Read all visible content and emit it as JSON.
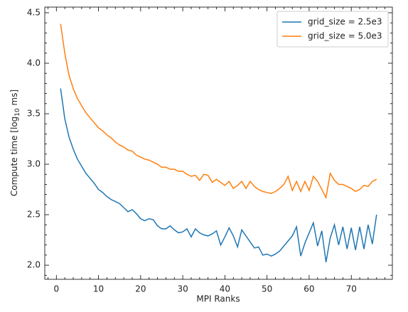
{
  "chart_data": {
    "type": "line",
    "xlabel": "MPI Ranks",
    "ylabel": [
      "Compute time [log",
      "10",
      " ms]"
    ],
    "x": [
      1,
      2,
      3,
      4,
      5,
      6,
      7,
      8,
      9,
      10,
      11,
      12,
      13,
      14,
      15,
      16,
      17,
      18,
      19,
      20,
      21,
      22,
      23,
      24,
      25,
      26,
      27,
      28,
      29,
      30,
      31,
      32,
      33,
      34,
      35,
      36,
      37,
      38,
      39,
      40,
      41,
      42,
      43,
      44,
      45,
      46,
      47,
      48,
      49,
      50,
      51,
      52,
      53,
      54,
      55,
      56,
      57,
      58,
      59,
      60,
      61,
      62,
      63,
      64,
      65,
      66,
      67,
      68,
      69,
      70,
      71,
      72,
      73,
      74,
      75,
      76
    ],
    "series": [
      {
        "name": "grid_size = 2.5e3",
        "color": "#1f77b4",
        "values": [
          3.75,
          3.45,
          3.27,
          3.15,
          3.05,
          2.98,
          2.91,
          2.86,
          2.81,
          2.75,
          2.72,
          2.68,
          2.65,
          2.63,
          2.61,
          2.57,
          2.53,
          2.55,
          2.51,
          2.46,
          2.44,
          2.46,
          2.45,
          2.39,
          2.36,
          2.36,
          2.39,
          2.35,
          2.32,
          2.33,
          2.36,
          2.28,
          2.36,
          2.32,
          2.3,
          2.29,
          2.31,
          2.34,
          2.2,
          2.28,
          2.37,
          2.29,
          2.18,
          2.35,
          2.29,
          2.23,
          2.17,
          2.18,
          2.1,
          2.11,
          2.09,
          2.11,
          2.14,
          2.19,
          2.24,
          2.29,
          2.38,
          2.09,
          2.22,
          2.32,
          2.42,
          2.19,
          2.34,
          2.03,
          2.27,
          2.4,
          2.2,
          2.38,
          2.16,
          2.37,
          2.15,
          2.38,
          2.16,
          2.4,
          2.21,
          2.5
        ]
      },
      {
        "name": "grid_size = 5.0e3",
        "color": "#ff7f0e",
        "values": [
          4.39,
          4.1,
          3.88,
          3.75,
          3.65,
          3.58,
          3.51,
          3.46,
          3.41,
          3.36,
          3.33,
          3.29,
          3.26,
          3.22,
          3.19,
          3.17,
          3.14,
          3.13,
          3.09,
          3.07,
          3.05,
          3.04,
          3.02,
          3.0,
          2.97,
          2.97,
          2.95,
          2.95,
          2.93,
          2.93,
          2.9,
          2.88,
          2.89,
          2.84,
          2.9,
          2.89,
          2.82,
          2.85,
          2.82,
          2.79,
          2.83,
          2.76,
          2.79,
          2.83,
          2.76,
          2.83,
          2.78,
          2.75,
          2.73,
          2.72,
          2.71,
          2.73,
          2.76,
          2.8,
          2.88,
          2.74,
          2.83,
          2.73,
          2.83,
          2.74,
          2.88,
          2.83,
          2.75,
          2.67,
          2.91,
          2.84,
          2.8,
          2.8,
          2.78,
          2.76,
          2.73,
          2.75,
          2.79,
          2.78,
          2.83,
          2.85
        ]
      }
    ],
    "xlim": [
      -2.75,
      79.75
    ],
    "ylim": [
      1.86,
      4.556
    ],
    "xticks": [
      0,
      10,
      20,
      30,
      40,
      50,
      60,
      70
    ],
    "yticks": [
      {
        "value": 2,
        "label": "2.0"
      },
      {
        "value": 2.5,
        "label": "2.5"
      },
      {
        "value": 3,
        "label": "3.0"
      },
      {
        "value": 3.5,
        "label": "3.5"
      },
      {
        "value": 4,
        "label": "4.0"
      },
      {
        "value": 4.5,
        "label": "4.5"
      }
    ],
    "xminorticks": [
      -2,
      2,
      4,
      6,
      8,
      12,
      14,
      16,
      18,
      22,
      24,
      26,
      28,
      32,
      34,
      36,
      38,
      42,
      44,
      46,
      48,
      52,
      54,
      56,
      58,
      62,
      64,
      66,
      68,
      72,
      74,
      76,
      78
    ],
    "yminorticks": [
      1.9,
      2.1,
      2.2,
      2.3,
      2.4,
      2.6,
      2.7,
      2.8,
      2.9,
      3.1,
      3.2,
      3.3,
      3.4,
      3.6,
      3.7,
      3.8,
      3.9,
      4.1,
      4.2,
      4.3,
      4.4
    ],
    "legend": "upper right"
  }
}
